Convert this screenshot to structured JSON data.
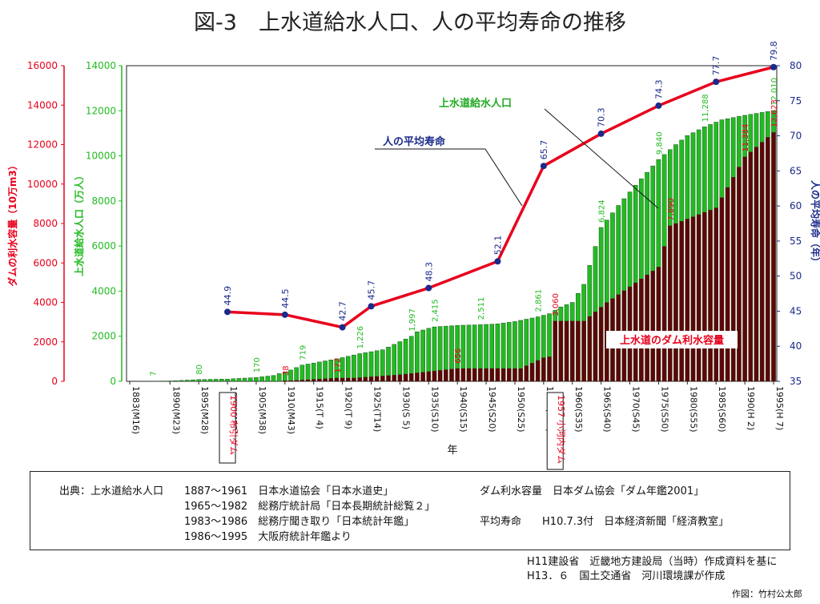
{
  "title": "図-3　上水道給水人口、人の平均寿命の推移",
  "chart_data": {
    "type": "bar+line",
    "x_categories": [
      "1883(M16)",
      "1890(M23)",
      "1895(M28)",
      "1900(M33)",
      "1905(M38)",
      "1910(M43)",
      "1915(T 4)",
      "1920(T 9)",
      "1925(T14)",
      "1930(S 5)",
      "1935(S10)",
      "1940(S15)",
      "1945(S20)",
      "1950(S25)",
      "1955(S30)",
      "1960(S35)",
      "1965(S40)",
      "1970(S45)",
      "1975(S50)",
      "1980(S55)",
      "1985(S60)",
      "1990(H 2)",
      "1995(H 7)"
    ],
    "xlabel": "年",
    "x_range": [
      1883,
      1995
    ],
    "axes": {
      "dam": {
        "label": "ダムの利水容量（10万m3）",
        "ticks": [
          "0",
          "2000",
          "4000",
          "6000",
          "8000",
          "10000",
          "12000",
          "14000",
          "16000"
        ],
        "range": [
          0,
          16000
        ],
        "color": "#e8001c"
      },
      "population": {
        "label": "上水道給水人口（万人）",
        "ticks": [
          "0",
          "2000",
          "4000",
          "6000",
          "8000",
          "10000",
          "12000",
          "14000"
        ],
        "range": [
          0,
          14000
        ],
        "color": "#22bb22"
      },
      "lifespan": {
        "label": "人の平均寿命（年）",
        "ticks": [
          "35",
          "40",
          "45",
          "50",
          "55",
          "60",
          "65",
          "70",
          "75",
          "80"
        ],
        "range": [
          35,
          80
        ],
        "color": "#1a2a8a"
      }
    },
    "series": [
      {
        "name": "上水道給水人口",
        "axis": "population",
        "bar_color": "#22bb22",
        "anchors": [
          [
            1887,
            7
          ],
          [
            1890,
            15
          ],
          [
            1895,
            80
          ],
          [
            1900,
            100
          ],
          [
            1905,
            170
          ],
          [
            1908,
            260
          ],
          [
            1911,
            500
          ],
          [
            1913,
            719
          ],
          [
            1918,
            950
          ],
          [
            1920,
            1050
          ],
          [
            1923,
            1226
          ],
          [
            1927,
            1400
          ],
          [
            1932,
            1997
          ],
          [
            1933,
            2200
          ],
          [
            1935,
            2350
          ],
          [
            1936,
            2415
          ],
          [
            1940,
            2480
          ],
          [
            1944,
            2511
          ],
          [
            1947,
            2550
          ],
          [
            1950,
            2650
          ],
          [
            1954,
            2861
          ],
          [
            1956,
            3000
          ],
          [
            1958,
            3300
          ],
          [
            1960,
            3500
          ],
          [
            1962,
            4300
          ],
          [
            1965,
            6824
          ],
          [
            1968,
            7800
          ],
          [
            1971,
            8700
          ],
          [
            1975,
            9840
          ],
          [
            1978,
            10500
          ],
          [
            1980,
            10900
          ],
          [
            1983,
            11288
          ],
          [
            1986,
            11600
          ],
          [
            1990,
            11800
          ],
          [
            1995,
            12010
          ]
        ],
        "labels": [
          [
            1887,
            "7"
          ],
          [
            1895,
            "80"
          ],
          [
            1905,
            "170"
          ],
          [
            1913,
            "719"
          ],
          [
            1923,
            "1,226"
          ],
          [
            1932,
            "1,997"
          ],
          [
            1936,
            "2,415"
          ],
          [
            1944,
            "2,511"
          ],
          [
            1954,
            "2,861"
          ],
          [
            1965,
            "6,824"
          ],
          [
            1975,
            "9,840"
          ],
          [
            1983,
            "11,288"
          ],
          [
            1995,
            "12,010"
          ]
        ]
      },
      {
        "name": "上水道のダム利水容量",
        "axis": "dam",
        "bar_color": "#5a0808",
        "anchors": [
          [
            1900,
            0
          ],
          [
            1909,
            0
          ],
          [
            1910,
            38
          ],
          [
            1911,
            38
          ],
          [
            1919,
            172
          ],
          [
            1922,
            172
          ],
          [
            1930,
            340
          ],
          [
            1940,
            656
          ],
          [
            1951,
            656
          ],
          [
            1955,
            1200
          ],
          [
            1956,
            1250
          ],
          [
            1957,
            3060
          ],
          [
            1962,
            3060
          ],
          [
            1966,
            4000
          ],
          [
            1975,
            5800
          ],
          [
            1977,
            7890
          ],
          [
            1985,
            8800
          ],
          [
            1990,
            11384
          ],
          [
            1995,
            12623
          ]
        ],
        "labels": [
          [
            1910,
            "38"
          ],
          [
            1919,
            "172"
          ],
          [
            1940,
            "656"
          ],
          [
            1957,
            "3,060"
          ],
          [
            1977,
            "7,890"
          ],
          [
            1990,
            "11,384"
          ],
          [
            1995,
            "12,623"
          ]
        ]
      },
      {
        "name": "人の平均寿命",
        "axis": "lifespan",
        "line_color": "#e8001c",
        "points": [
          [
            1900,
            44.9
          ],
          [
            1910,
            44.5
          ],
          [
            1920,
            42.7
          ],
          [
            1925,
            45.7
          ],
          [
            1935,
            48.3
          ],
          [
            1947,
            52.1
          ],
          [
            1955,
            65.7
          ],
          [
            1965,
            70.3
          ],
          [
            1975,
            74.3
          ],
          [
            1985,
            77.7
          ],
          [
            1995,
            79.8
          ]
        ],
        "point_labels": [
          "44.9",
          "44.5",
          "42.7",
          "45.7",
          "48.3",
          "52.1",
          "65.7",
          "70.3",
          "74.3",
          "77.7",
          "79.8"
        ]
      }
    ],
    "annotations": {
      "population_callout": "上水道給水人口",
      "lifespan_callout": "人の平均寿命",
      "dam_callout": "上水道のダム利水容量",
      "dam_1900": {
        "year": "1900",
        "name": "布引ダム"
      },
      "dam_1957": {
        "year": "1957",
        "name": "小河内ダム"
      }
    }
  },
  "source": {
    "heading": "出典：",
    "left": [
      {
        "item": "上水道給水人口",
        "period": "1887～1961",
        "text": "日本水道協会「日本水道史」"
      },
      {
        "item": "",
        "period": "1965～1982",
        "text": "総務庁統計局「日本長期統計総覧２」"
      },
      {
        "item": "",
        "period": "1983～1986",
        "text": "総務庁聞き取り「日本統計年鑑」"
      },
      {
        "item": "",
        "period": "1986～1995",
        "text": "大阪府統計年鑑より"
      }
    ],
    "right": [
      {
        "item": "ダム利水容量",
        "text": "日本ダム協会「ダム年鑑2001」"
      },
      {
        "item": "平均寿命",
        "text": "H10.7.3付　日本経済新聞「経済教室」"
      }
    ]
  },
  "footnotes": [
    "H11建設省　近畿地方建設局（当時）作成資料を基に",
    "H13．６　国土交通省　河川環境課が作成"
  ],
  "credit": "作図：竹村公太郎"
}
